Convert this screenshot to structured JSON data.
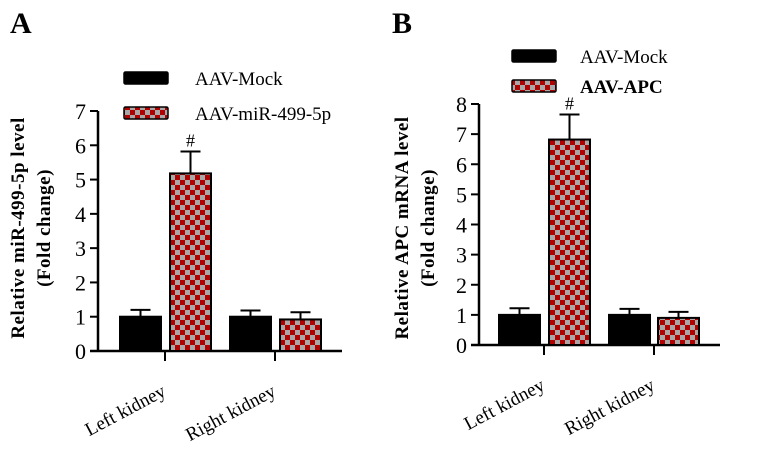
{
  "colors": {
    "mock": "#000000",
    "treat_red": "#b00000",
    "treat_gray": "#a8a8a8",
    "axis": "#000000"
  },
  "chart_data": [
    {
      "panel": "A",
      "type": "bar",
      "title": "",
      "xlabel": "",
      "ylabel_line1": "Relative miR-499-5p level",
      "ylabel_line2": "(Fold change)",
      "categories": [
        "Left kidney",
        "Right kidney"
      ],
      "ylim": [
        0,
        7
      ],
      "yticks": [
        0,
        1,
        2,
        3,
        4,
        5,
        6,
        7
      ],
      "grid": false,
      "legend_position": "top",
      "series": [
        {
          "name": "AAV-Mock",
          "pattern": "solid",
          "values": [
            1.0,
            1.0
          ],
          "error_upper": [
            1.2,
            1.18
          ],
          "bold_legend": false
        },
        {
          "name": "AAV-miR-499-5p",
          "pattern": "checker",
          "values": [
            5.18,
            0.92
          ],
          "error_upper": [
            5.82,
            1.13
          ],
          "bold_legend": false
        }
      ],
      "annotations": [
        {
          "text": "#",
          "series": 1,
          "category": 0
        }
      ]
    },
    {
      "panel": "B",
      "type": "bar",
      "title": "",
      "xlabel": "",
      "ylabel_line1": "Relative APC mRNA level",
      "ylabel_line2": "(Fold change)",
      "categories": [
        "Left kidney",
        "Right kidney"
      ],
      "ylim": [
        0,
        8
      ],
      "yticks": [
        0,
        1,
        2,
        3,
        4,
        5,
        6,
        7,
        8
      ],
      "grid": false,
      "legend_position": "top",
      "series": [
        {
          "name": "AAV-Mock",
          "pattern": "solid",
          "values": [
            1.0,
            1.0
          ],
          "error_upper": [
            1.22,
            1.2
          ],
          "bold_legend": false
        },
        {
          "name": "AAV-APC",
          "pattern": "checker",
          "values": [
            6.82,
            0.9
          ],
          "error_upper": [
            7.65,
            1.1
          ],
          "bold_legend": true
        }
      ],
      "annotations": [
        {
          "text": "#",
          "series": 1,
          "category": 0
        }
      ]
    }
  ]
}
